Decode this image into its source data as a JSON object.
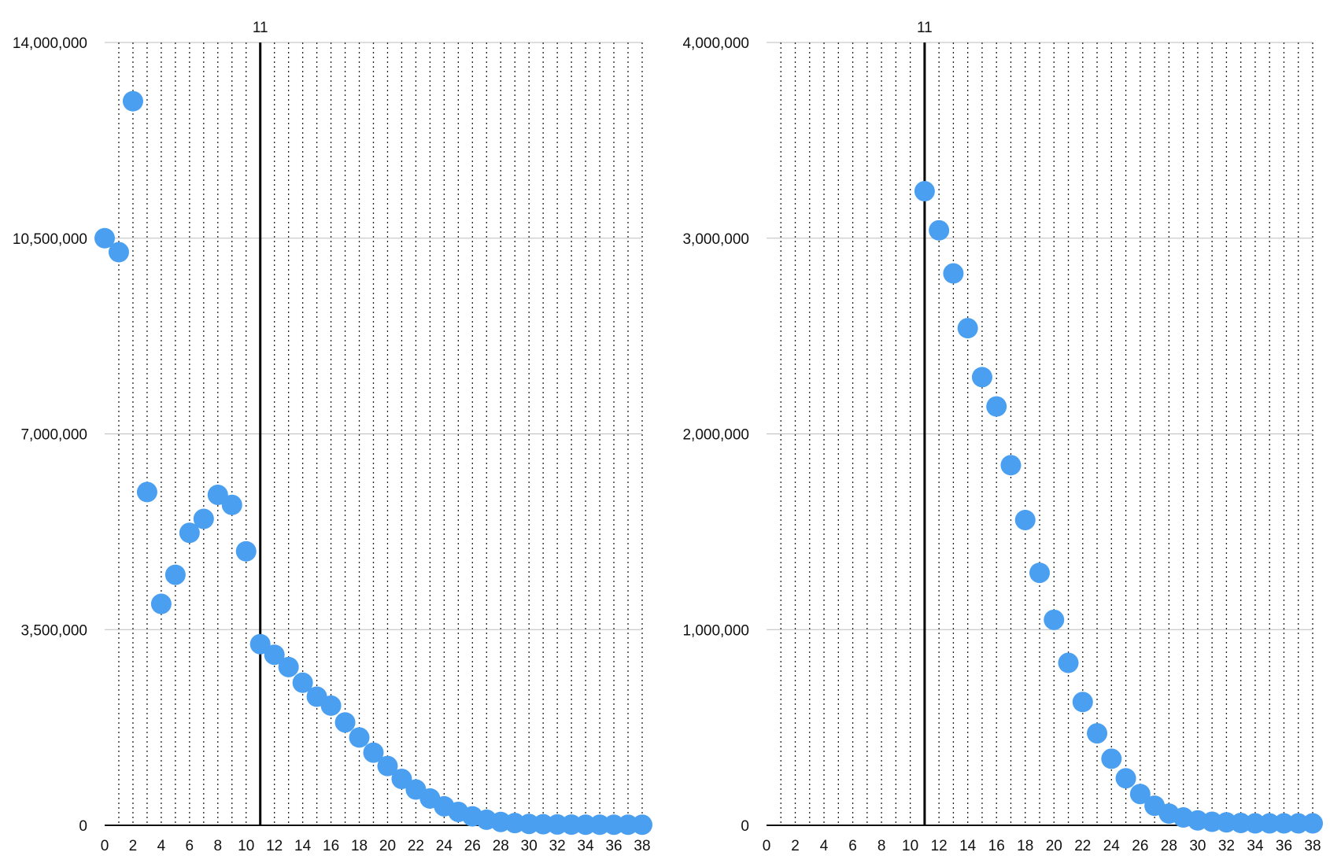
{
  "chart_data": [
    {
      "type": "scatter",
      "xlim": [
        0,
        38
      ],
      "ylim": [
        0,
        14000000
      ],
      "x_ticks": [
        "0",
        "2",
        "4",
        "6",
        "8",
        "10",
        "12",
        "14",
        "16",
        "18",
        "20",
        "22",
        "24",
        "26",
        "28",
        "30",
        "32",
        "34",
        "36",
        "38"
      ],
      "y_ticks": [
        "0",
        "3,500,000",
        "7,000,000",
        "10,500,000",
        "14,000,000"
      ],
      "vertical_grid": "dotted, every 1",
      "horizontal_grid": true,
      "reference_line": {
        "x": 11,
        "label": "11"
      },
      "point_color": "#4a9ff0",
      "points": [
        [
          0,
          10500000
        ],
        [
          1,
          10250000
        ],
        [
          2,
          12950000
        ],
        [
          3,
          5960000
        ],
        [
          4,
          3960000
        ],
        [
          5,
          4480000
        ],
        [
          6,
          5230000
        ],
        [
          7,
          5480000
        ],
        [
          8,
          5910000
        ],
        [
          9,
          5730000
        ],
        [
          10,
          4900000
        ],
        [
          11,
          3240000
        ],
        [
          12,
          3050000
        ],
        [
          13,
          2830000
        ],
        [
          14,
          2550000
        ],
        [
          15,
          2300000
        ],
        [
          16,
          2140000
        ],
        [
          17,
          1840000
        ],
        [
          18,
          1570000
        ],
        [
          19,
          1300000
        ],
        [
          20,
          1060000
        ],
        [
          21,
          830000
        ],
        [
          22,
          640000
        ],
        [
          23,
          480000
        ],
        [
          24,
          340000
        ],
        [
          25,
          240000
        ],
        [
          26,
          160000
        ],
        [
          27,
          100000
        ],
        [
          28,
          60000
        ],
        [
          29,
          40000
        ],
        [
          30,
          25000
        ],
        [
          31,
          20000
        ],
        [
          32,
          15000
        ],
        [
          33,
          12000
        ],
        [
          34,
          10000
        ],
        [
          35,
          10000
        ],
        [
          36,
          10000
        ],
        [
          37,
          10000
        ],
        [
          38,
          10000
        ]
      ]
    },
    {
      "type": "scatter",
      "xlim": [
        0,
        38
      ],
      "ylim": [
        0,
        4000000
      ],
      "x_ticks": [
        "0",
        "2",
        "4",
        "6",
        "8",
        "10",
        "12",
        "14",
        "16",
        "18",
        "20",
        "22",
        "24",
        "26",
        "28",
        "30",
        "32",
        "34",
        "36",
        "38"
      ],
      "y_ticks": [
        "0",
        "1,000,000",
        "2,000,000",
        "3,000,000",
        "4,000,000"
      ],
      "vertical_grid": "dotted, every 1",
      "horizontal_grid": true,
      "reference_line": {
        "x": 11,
        "label": "11"
      },
      "point_color": "#4a9ff0",
      "points": [
        [
          11,
          3240000
        ],
        [
          12,
          3040000
        ],
        [
          13,
          2820000
        ],
        [
          14,
          2540000
        ],
        [
          15,
          2290000
        ],
        [
          16,
          2140000
        ],
        [
          17,
          1840000
        ],
        [
          18,
          1560000
        ],
        [
          19,
          1290000
        ],
        [
          20,
          1050000
        ],
        [
          21,
          830000
        ],
        [
          22,
          630000
        ],
        [
          23,
          470000
        ],
        [
          24,
          340000
        ],
        [
          25,
          240000
        ],
        [
          26,
          160000
        ],
        [
          27,
          100000
        ],
        [
          28,
          60000
        ],
        [
          29,
          40000
        ],
        [
          30,
          25000
        ],
        [
          31,
          18000
        ],
        [
          32,
          15000
        ],
        [
          33,
          12000
        ],
        [
          34,
          10000
        ],
        [
          35,
          10000
        ],
        [
          36,
          10000
        ],
        [
          37,
          10000
        ],
        [
          38,
          10000
        ]
      ]
    }
  ]
}
